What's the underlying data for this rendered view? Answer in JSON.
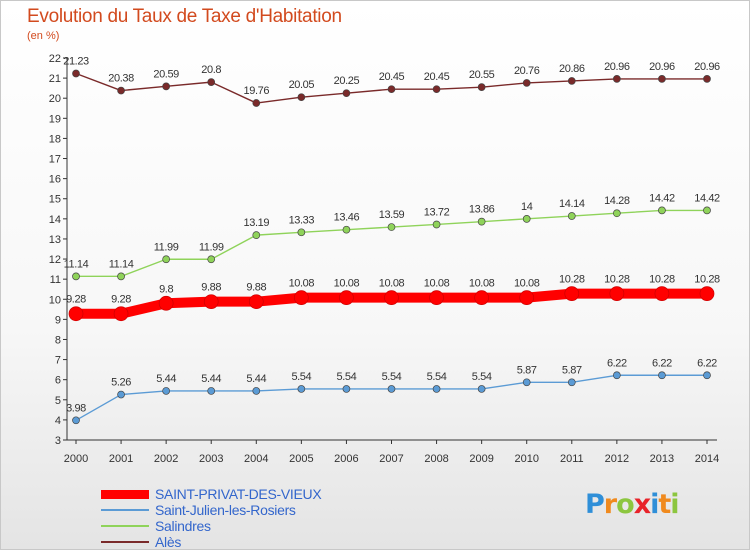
{
  "header": {
    "title": "Evolution du Taux de Taxe d'Habitation",
    "unit": "(en %)"
  },
  "chart_data": {
    "type": "line",
    "title": "Evolution du Taux de Taxe d'Habitation",
    "ylabel": "(en %)",
    "xlabel": "",
    "categories": [
      "2000",
      "2001",
      "2002",
      "2003",
      "2004",
      "2005",
      "2006",
      "2007",
      "2008",
      "2009",
      "2010",
      "2011",
      "2012",
      "2013",
      "2014"
    ],
    "ylim": [
      3,
      22
    ],
    "yticks": [
      3,
      4,
      5,
      6,
      7,
      8,
      9,
      10,
      11,
      12,
      13,
      14,
      15,
      16,
      17,
      18,
      19,
      20,
      21,
      22
    ],
    "grid": false,
    "legend_position": "bottom-left",
    "series": [
      {
        "name": "SAINT-PRIVAT-DES-VIEUX",
        "color": "#ff0000",
        "style": "thick",
        "values": [
          9.28,
          9.28,
          9.8,
          9.88,
          9.88,
          10.08,
          10.08,
          10.08,
          10.08,
          10.08,
          10.08,
          10.28,
          10.28,
          10.28,
          10.28
        ],
        "labels": [
          "9.28",
          "9.28",
          "9.8",
          "9.88",
          "9.88",
          "10.08",
          "10.08",
          "10.08",
          "10.08",
          "10.08",
          "10.08",
          "10.28",
          "10.28",
          "10.28",
          "10.28"
        ]
      },
      {
        "name": "Saint-Julien-les-Rosiers",
        "color": "#5b9bd5",
        "style": "thin",
        "values": [
          3.98,
          5.26,
          5.44,
          5.44,
          5.44,
          5.54,
          5.54,
          5.54,
          5.54,
          5.54,
          5.87,
          5.87,
          6.22,
          6.22,
          6.22
        ],
        "labels": [
          "3.98",
          "5.26",
          "5.44",
          "5.44",
          "5.44",
          "5.54",
          "5.54",
          "5.54",
          "5.54",
          "5.54",
          "5.87",
          "5.87",
          "6.22",
          "6.22",
          "6.22"
        ]
      },
      {
        "name": "Salindres",
        "color": "#8fd35a",
        "style": "thin",
        "values": [
          11.14,
          11.14,
          11.99,
          11.99,
          13.19,
          13.33,
          13.46,
          13.59,
          13.72,
          13.86,
          14,
          14.14,
          14.28,
          14.42,
          14.42
        ],
        "labels": [
          "11.14",
          "11.14",
          "11.99",
          "11.99",
          "13.19",
          "13.33",
          "13.46",
          "13.59",
          "13.72",
          "13.86",
          "14",
          "14.14",
          "14.28",
          "14.42",
          "14.42"
        ]
      },
      {
        "name": "Alès",
        "color": "#7a2a2a",
        "style": "thin",
        "values": [
          21.23,
          20.38,
          20.59,
          20.8,
          19.76,
          20.05,
          20.25,
          20.45,
          20.45,
          20.55,
          20.76,
          20.86,
          20.96,
          20.96,
          20.96
        ],
        "labels": [
          "21.23",
          "20.38",
          "20.59",
          "20.8",
          "19.76",
          "20.05",
          "20.25",
          "20.45",
          "20.45",
          "20.55",
          "20.76",
          "20.86",
          "20.96",
          "20.96",
          "20.96"
        ]
      }
    ]
  },
  "logo": {
    "letters": [
      "P",
      "r",
      "o",
      "x",
      "i",
      "t",
      "i"
    ],
    "colors": [
      "#2f8fd8",
      "#f08a1e",
      "#8cc63f",
      "#e8232a",
      "#2f8fd8",
      "#f08a1e",
      "#8cc63f"
    ]
  }
}
